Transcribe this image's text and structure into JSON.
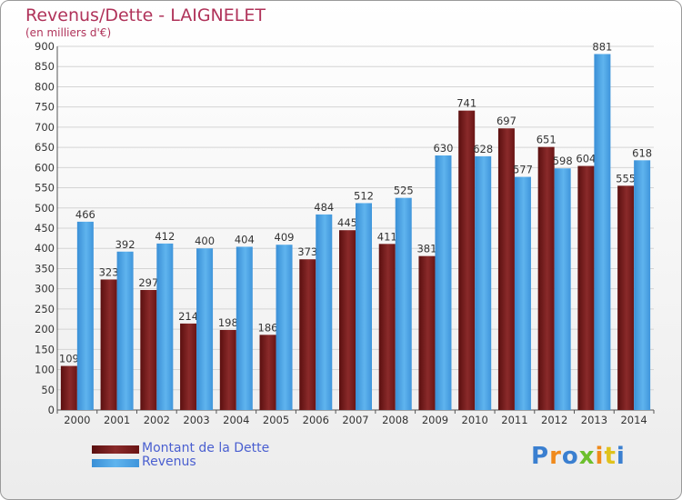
{
  "header": {
    "title": "Revenus/Dette - LAIGNELET",
    "subtitle": "(en milliers d'€)"
  },
  "chart_data": {
    "type": "bar",
    "categories": [
      "2000",
      "2001",
      "2002",
      "2003",
      "2004",
      "2005",
      "2006",
      "2007",
      "2008",
      "2009",
      "2010",
      "2011",
      "2012",
      "2013",
      "2014"
    ],
    "series": [
      {
        "name": "Montant de la Dette",
        "color": "#7a1f1f",
        "values": [
          109,
          323,
          297,
          214,
          198,
          186,
          373,
          445,
          411,
          381,
          741,
          697,
          651,
          604,
          555
        ]
      },
      {
        "name": "Revenus",
        "color": "#4aa3e6",
        "values": [
          466,
          392,
          412,
          400,
          404,
          409,
          484,
          512,
          525,
          630,
          628,
          577,
          598,
          881,
          618
        ]
      }
    ],
    "ylim": [
      0,
      900
    ],
    "yticks": [
      0,
      50,
      100,
      150,
      200,
      250,
      300,
      350,
      400,
      450,
      500,
      550,
      600,
      650,
      700,
      750,
      800,
      850,
      900
    ],
    "grid": true,
    "legend_position": "bottom-left"
  },
  "logo": {
    "letters": [
      "P",
      "r",
      "o",
      "x",
      "i",
      "t",
      "i"
    ],
    "colors": [
      "#3a7fd0",
      "#f08a1c",
      "#3a7fd0",
      "#6cbf2c",
      "#f08a1c",
      "#e0c21c",
      "#3a7fd0"
    ]
  }
}
